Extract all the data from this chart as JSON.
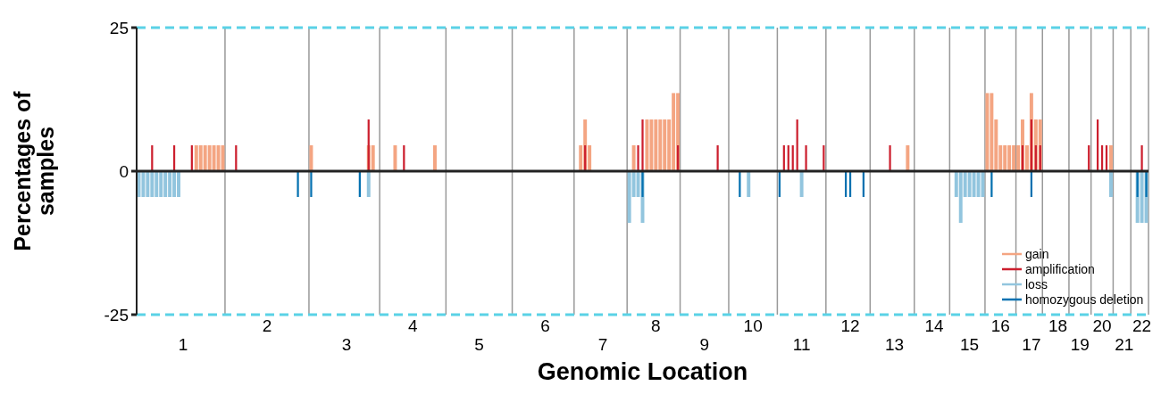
{
  "chart_data": {
    "type": "bar",
    "xlabel": "Genomic Location",
    "ylabel": "Percentages of samples",
    "ylim": [
      -25,
      25
    ],
    "yticks": [
      -25,
      0,
      25
    ],
    "categories": [
      null,
      null,
      null,
      null,
      null,
      null,
      null,
      null,
      null,
      null,
      "1",
      null,
      null,
      null,
      null,
      null,
      null,
      null,
      null,
      null,
      null,
      null,
      null,
      null,
      null,
      null,
      null,
      null,
      null,
      "2",
      null,
      null,
      null,
      null,
      null,
      null,
      null,
      null,
      null,
      null,
      null,
      null,
      null,
      null,
      null,
      null,
      null,
      "3",
      null,
      null,
      null,
      null,
      null,
      null,
      null,
      null,
      null,
      null,
      null,
      null,
      null,
      null,
      "4",
      null,
      null,
      null,
      null,
      null,
      null,
      null,
      null,
      null,
      null,
      null,
      null,
      null,
      null,
      "5",
      null,
      null,
      null,
      null,
      null,
      null,
      null,
      null,
      null,
      null,
      null,
      null,
      null,
      null,
      "6",
      null,
      null,
      null,
      null,
      null,
      null,
      null,
      null,
      null,
      null,
      null,
      null,
      "7",
      null,
      null,
      null,
      null,
      null,
      null,
      null,
      null,
      null,
      null,
      null,
      "8",
      null,
      null,
      null,
      null,
      null,
      null,
      null,
      null,
      null,
      null,
      "9",
      null,
      null,
      null,
      null,
      null,
      null,
      null,
      null,
      null,
      null,
      "10",
      null,
      null,
      null,
      null,
      null,
      null,
      null,
      null,
      null,
      null,
      "11",
      null,
      null,
      null,
      null,
      null,
      null,
      null,
      null,
      null,
      null,
      "12",
      null,
      null,
      null,
      null,
      null,
      null,
      null,
      null,
      null,
      "13",
      null,
      null,
      null,
      null,
      null,
      null,
      null,
      null,
      "14",
      null,
      null,
      null,
      null,
      null,
      null,
      null,
      "15",
      null,
      null,
      null,
      null,
      null,
      null,
      "16",
      null,
      null,
      null,
      null,
      null,
      null,
      "17",
      null,
      null,
      null,
      null,
      null,
      "18",
      null,
      null,
      null,
      null,
      "19",
      null,
      null,
      null,
      null,
      "20",
      null,
      null,
      null,
      null,
      "21",
      null,
      null,
      null,
      "22",
      null
    ],
    "legend": "bottom right",
    "ref_lines": [
      {
        "axis": "y",
        "value": 25,
        "color": "#5ad2e6",
        "line_style": "dashed"
      },
      {
        "axis": "y",
        "value": -25,
        "color": "#5ad2e6",
        "line_style": "dashed"
      }
    ],
    "series": [
      {
        "name": "gain",
        "color": "#f4a582",
        "values": [
          null,
          null,
          null,
          null,
          null,
          null,
          null,
          null,
          null,
          null,
          null,
          null,
          null,
          4.5,
          4.5,
          4.5,
          4.5,
          4.5,
          4.5,
          4.5,
          null,
          null,
          null,
          null,
          null,
          null,
          null,
          null,
          null,
          null,
          null,
          null,
          null,
          null,
          null,
          null,
          null,
          null,
          null,
          4.5,
          null,
          null,
          null,
          null,
          null,
          null,
          null,
          null,
          null,
          null,
          null,
          null,
          4.5,
          4.5,
          null,
          null,
          null,
          null,
          4.5,
          null,
          null,
          null,
          null,
          null,
          null,
          null,
          null,
          4.5,
          null,
          null,
          null,
          null,
          null,
          null,
          null,
          null,
          null,
          null,
          null,
          null,
          null,
          null,
          null,
          null,
          null,
          null,
          null,
          null,
          null,
          null,
          null,
          null,
          null,
          null,
          null,
          null,
          null,
          null,
          null,
          null,
          4.5,
          9,
          4.5,
          null,
          null,
          null,
          null,
          null,
          null,
          null,
          null,
          null,
          4.5,
          null,
          null,
          9,
          9,
          9,
          9,
          9,
          9,
          13.6,
          13.6,
          null,
          null,
          null,
          null,
          null,
          null,
          null,
          null,
          null,
          null,
          null,
          null,
          null,
          null,
          null,
          null,
          null,
          null,
          null,
          null,
          null,
          null,
          null,
          null,
          null,
          null,
          null,
          null,
          null,
          null,
          null,
          null,
          null,
          null,
          null,
          null,
          null,
          null,
          null,
          null,
          null,
          null,
          null,
          null,
          null,
          null,
          null,
          null,
          null,
          null,
          null,
          4.5,
          null,
          null,
          null,
          null,
          null,
          null,
          null,
          null,
          null,
          null,
          null,
          null,
          null,
          null,
          null,
          null,
          null,
          13.6,
          13.6,
          9,
          4.5,
          4.5,
          4.5,
          4.5,
          4.5,
          9,
          4.5,
          13.6,
          9,
          9,
          null,
          null,
          null,
          null,
          null,
          null,
          null,
          null,
          null,
          null,
          null,
          null,
          null,
          null,
          null,
          4.5,
          null,
          null,
          null,
          null,
          null,
          null,
          null,
          null
        ]
      },
      {
        "name": "amplification",
        "color": "#cc1f2e",
        "values": [
          null,
          null,
          null,
          4.5,
          null,
          null,
          null,
          null,
          4.5,
          null,
          null,
          null,
          4.5,
          null,
          null,
          null,
          null,
          null,
          null,
          null,
          null,
          null,
          4.5,
          null,
          null,
          null,
          null,
          null,
          null,
          null,
          null,
          null,
          null,
          null,
          null,
          null,
          null,
          null,
          null,
          null,
          null,
          null,
          null,
          null,
          null,
          null,
          null,
          null,
          null,
          null,
          null,
          null,
          9,
          null,
          null,
          null,
          null,
          null,
          null,
          null,
          4.5,
          null,
          null,
          null,
          null,
          null,
          null,
          null,
          null,
          null,
          null,
          null,
          null,
          null,
          null,
          null,
          null,
          null,
          null,
          null,
          null,
          null,
          null,
          null,
          null,
          null,
          null,
          null,
          null,
          null,
          null,
          null,
          null,
          null,
          null,
          null,
          null,
          null,
          null,
          null,
          null,
          4.5,
          null,
          null,
          null,
          null,
          null,
          null,
          null,
          null,
          null,
          null,
          null,
          4.5,
          9,
          null,
          null,
          null,
          null,
          null,
          null,
          null,
          4.5,
          null,
          null,
          null,
          null,
          null,
          null,
          null,
          null,
          4.5,
          null,
          null,
          null,
          null,
          null,
          null,
          null,
          null,
          null,
          null,
          null,
          null,
          null,
          null,
          4.5,
          4.5,
          4.5,
          9,
          null,
          4.5,
          null,
          null,
          null,
          4.5,
          null,
          null,
          null,
          null,
          null,
          null,
          null,
          null,
          null,
          null,
          null,
          null,
          null,
          null,
          4.5,
          null,
          null,
          null,
          null,
          null,
          null,
          null,
          null,
          null,
          null,
          null,
          null,
          null,
          null,
          null,
          null,
          null,
          null,
          null,
          null,
          null,
          null,
          null,
          null,
          null,
          null,
          null,
          null,
          null,
          4.5,
          null,
          9,
          4.5,
          4.5,
          null,
          null,
          null,
          null,
          null,
          null,
          null,
          null,
          null,
          null,
          4.5,
          null,
          9,
          4.5,
          4.5,
          null,
          null,
          null,
          null,
          null,
          null,
          null,
          4.5,
          null
        ]
      },
      {
        "name": "loss",
        "color": "#92c5de",
        "values": [
          -4.5,
          -4.5,
          -4.5,
          -4.5,
          -4.5,
          -4.5,
          -4.5,
          -4.5,
          -4.5,
          -4.5,
          null,
          null,
          null,
          null,
          null,
          null,
          null,
          null,
          null,
          null,
          null,
          null,
          null,
          null,
          null,
          null,
          null,
          null,
          null,
          null,
          null,
          null,
          null,
          null,
          null,
          null,
          null,
          null,
          null,
          null,
          null,
          null,
          null,
          null,
          null,
          null,
          null,
          null,
          null,
          null,
          null,
          null,
          -4.5,
          null,
          null,
          null,
          null,
          null,
          null,
          null,
          null,
          null,
          null,
          null,
          null,
          null,
          null,
          null,
          null,
          null,
          null,
          null,
          null,
          null,
          null,
          null,
          null,
          null,
          null,
          null,
          null,
          null,
          null,
          null,
          null,
          null,
          null,
          null,
          null,
          null,
          null,
          null,
          null,
          null,
          null,
          null,
          null,
          null,
          null,
          null,
          null,
          null,
          null,
          null,
          null,
          null,
          null,
          null,
          null,
          null,
          null,
          -9,
          -4.5,
          -4.5,
          -9,
          null,
          null,
          null,
          null,
          null,
          null,
          null,
          null,
          null,
          null,
          null,
          null,
          null,
          null,
          null,
          null,
          null,
          null,
          null,
          null,
          null,
          null,
          null,
          -4.5,
          null,
          null,
          null,
          null,
          null,
          null,
          null,
          null,
          null,
          null,
          null,
          -4.5,
          null,
          null,
          null,
          null,
          null,
          null,
          null,
          null,
          null,
          null,
          null,
          null,
          null,
          null,
          null,
          null,
          null,
          null,
          null,
          null,
          null,
          null,
          null,
          null,
          null,
          null,
          null,
          null,
          null,
          null,
          null,
          null,
          null,
          null,
          -4.5,
          -9,
          -4.5,
          -4.5,
          -4.5,
          -4.5,
          -4.5,
          null,
          null,
          null,
          null,
          null,
          null,
          null,
          null,
          null,
          null,
          null,
          null,
          null,
          null,
          null,
          null,
          null,
          null,
          null,
          null,
          null,
          null,
          null,
          null,
          null,
          null,
          null,
          null,
          -4.5,
          null,
          null,
          null,
          null,
          null,
          -9,
          -9,
          -9
        ]
      },
      {
        "name": "homozygous deletion",
        "color": "#0571b0",
        "values": [
          null,
          null,
          null,
          null,
          null,
          null,
          null,
          null,
          null,
          null,
          null,
          null,
          null,
          null,
          null,
          null,
          null,
          null,
          null,
          null,
          null,
          null,
          null,
          null,
          null,
          null,
          null,
          null,
          null,
          null,
          null,
          null,
          null,
          null,
          null,
          null,
          -4.5,
          null,
          null,
          -4.5,
          null,
          null,
          null,
          null,
          null,
          null,
          null,
          null,
          null,
          null,
          -4.5,
          null,
          null,
          null,
          null,
          null,
          null,
          null,
          null,
          null,
          null,
          null,
          null,
          null,
          null,
          null,
          null,
          null,
          null,
          null,
          null,
          null,
          null,
          null,
          null,
          null,
          null,
          null,
          null,
          null,
          null,
          null,
          null,
          null,
          null,
          null,
          null,
          null,
          null,
          null,
          null,
          null,
          null,
          null,
          null,
          null,
          null,
          null,
          null,
          null,
          null,
          null,
          null,
          null,
          null,
          null,
          null,
          null,
          null,
          null,
          null,
          null,
          null,
          null,
          -4.5,
          null,
          null,
          null,
          null,
          null,
          null,
          null,
          null,
          null,
          null,
          null,
          null,
          null,
          null,
          null,
          null,
          null,
          null,
          null,
          null,
          null,
          -4.5,
          null,
          null,
          null,
          null,
          null,
          null,
          null,
          null,
          -4.5,
          null,
          null,
          null,
          null,
          null,
          null,
          null,
          null,
          null,
          null,
          null,
          null,
          null,
          null,
          -4.5,
          -4.5,
          null,
          null,
          -4.5,
          null,
          null,
          null,
          null,
          null,
          null,
          null,
          null,
          null,
          null,
          null,
          null,
          null,
          null,
          null,
          null,
          null,
          null,
          null,
          null,
          null,
          null,
          null,
          null,
          null,
          null,
          null,
          null,
          -4.5,
          null,
          null,
          null,
          null,
          null,
          null,
          null,
          null,
          -4.5,
          null,
          null,
          null,
          null,
          null,
          null,
          null,
          null,
          null,
          null,
          null,
          null,
          null,
          null,
          null,
          null,
          null,
          null,
          null,
          null,
          null,
          null,
          null,
          -4.5,
          null,
          -4.5
        ]
      }
    ]
  }
}
